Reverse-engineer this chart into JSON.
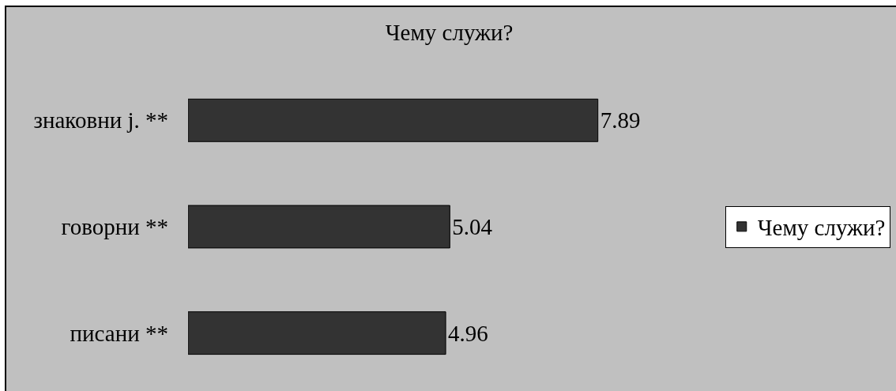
{
  "chart_data": {
    "type": "bar",
    "title": "Чему служи?",
    "orientation": "horizontal",
    "categories": [
      "знаковни ј. **",
      "говорни **",
      "писани **"
    ],
    "series": [
      {
        "name": "Чему служи?",
        "color": "#333333",
        "values": [
          7.89,
          5.04,
          4.96
        ]
      }
    ],
    "data_labels": true,
    "legend": "right"
  }
}
